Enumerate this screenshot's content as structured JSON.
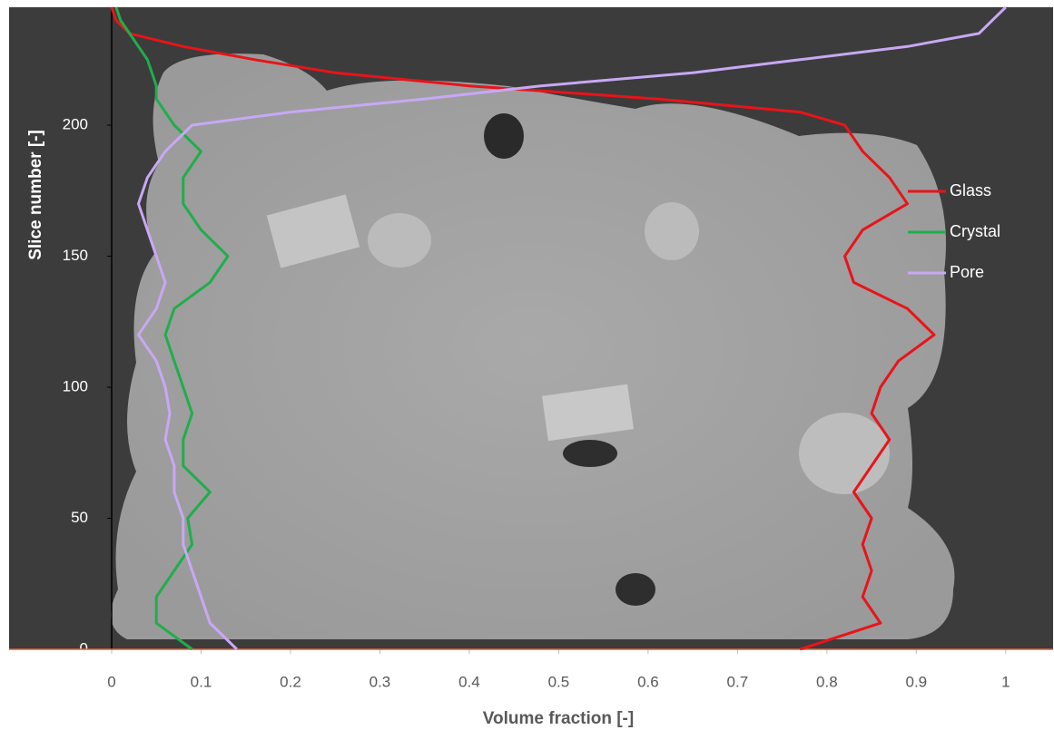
{
  "chart_data": {
    "type": "line",
    "x_label": "Volume fraction [-]",
    "y_label": "Slice number [-]",
    "y": [
      0,
      10,
      20,
      30,
      40,
      50,
      60,
      70,
      80,
      90,
      100,
      110,
      120,
      130,
      140,
      150,
      160,
      170,
      180,
      190,
      200,
      205,
      210,
      215,
      220,
      225,
      230,
      235,
      240,
      245
    ],
    "series": [
      {
        "name": "Glass",
        "color": "#e8141a",
        "values": [
          0.77,
          0.86,
          0.84,
          0.85,
          0.84,
          0.85,
          0.83,
          0.85,
          0.87,
          0.85,
          0.86,
          0.88,
          0.92,
          0.89,
          0.83,
          0.82,
          0.84,
          0.89,
          0.87,
          0.84,
          0.82,
          0.77,
          0.61,
          0.4,
          0.25,
          0.16,
          0.08,
          0.02,
          0.005,
          0
        ]
      },
      {
        "name": "Crystal",
        "color": "#1fae4b",
        "values": [
          0.09,
          0.05,
          0.05,
          0.07,
          0.09,
          0.085,
          0.11,
          0.08,
          0.08,
          0.09,
          0.08,
          0.07,
          0.06,
          0.07,
          0.11,
          0.13,
          0.1,
          0.08,
          0.08,
          0.1,
          0.07,
          0.06,
          0.05,
          0.05,
          0.045,
          0.04,
          0.03,
          0.02,
          0.01,
          0.005
        ]
      },
      {
        "name": "Pore",
        "color": "#c8a8f5",
        "values": [
          0.14,
          0.11,
          0.1,
          0.09,
          0.08,
          0.08,
          0.07,
          0.07,
          0.06,
          0.065,
          0.06,
          0.05,
          0.03,
          0.05,
          0.06,
          0.05,
          0.04,
          0.03,
          0.04,
          0.06,
          0.09,
          0.2,
          0.35,
          0.48,
          0.65,
          0.77,
          0.89,
          0.97,
          0.985,
          1
        ]
      }
    ],
    "xlim": [
      0,
      1.053
    ],
    "xticks": [
      0,
      0.1,
      0.2,
      0.3,
      0.4,
      0.5,
      0.6,
      0.7,
      0.8,
      0.9,
      1
    ],
    "ylim": [
      0,
      245
    ],
    "yticks": [
      0,
      50,
      100,
      150,
      200
    ],
    "legend": "right"
  }
}
